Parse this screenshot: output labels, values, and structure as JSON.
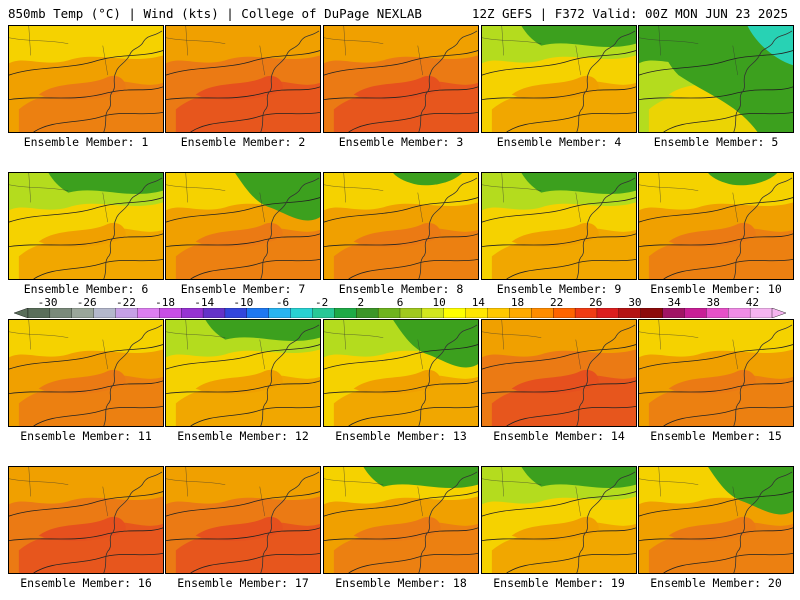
{
  "header": {
    "left": "850mb Temp (°C) | Wind (kts) | College of DuPage NEXLAB",
    "right": "12Z GEFS | F372 Valid: 00Z MON JUN 23 2025"
  },
  "panels": [
    {
      "label": "Ensemble Member: 1",
      "field": "warm",
      "green_area": "none"
    },
    {
      "label": "Ensemble Member: 2",
      "field": "hot",
      "green_area": "none"
    },
    {
      "label": "Ensemble Member: 3",
      "field": "hot",
      "green_area": "none"
    },
    {
      "label": "Ensemble Member: 4",
      "field": "mild",
      "green_area": "north"
    },
    {
      "label": "Ensemble Member: 5",
      "field": "cool",
      "green_area": "large-northeast"
    },
    {
      "label": "Ensemble Member: 6",
      "field": "mild",
      "green_area": "north"
    },
    {
      "label": "Ensemble Member: 7",
      "field": "warm",
      "green_area": "northeast"
    },
    {
      "label": "Ensemble Member: 8",
      "field": "warm",
      "green_area": "north-small"
    },
    {
      "label": "Ensemble Member: 9",
      "field": "mild",
      "green_area": "north"
    },
    {
      "label": "Ensemble Member: 10",
      "field": "warm",
      "green_area": "north-small"
    },
    {
      "label": "Ensemble Member: 11",
      "field": "warm",
      "green_area": "none"
    },
    {
      "label": "Ensemble Member: 12",
      "field": "mild",
      "green_area": "north"
    },
    {
      "label": "Ensemble Member: 13",
      "field": "mild",
      "green_area": "northeast"
    },
    {
      "label": "Ensemble Member: 14",
      "field": "hot",
      "green_area": "none"
    },
    {
      "label": "Ensemble Member: 15",
      "field": "warm",
      "green_area": "none"
    },
    {
      "label": "Ensemble Member: 16",
      "field": "hot",
      "green_area": "none"
    },
    {
      "label": "Ensemble Member: 17",
      "field": "hot",
      "green_area": "none"
    },
    {
      "label": "Ensemble Member: 18",
      "field": "warm",
      "green_area": "north"
    },
    {
      "label": "Ensemble Member: 19",
      "field": "mild",
      "green_area": "north"
    },
    {
      "label": "Ensemble Member: 20",
      "field": "warm",
      "green_area": "northeast"
    }
  ],
  "colorbar": {
    "labels": [
      "-30",
      "-26",
      "-22",
      "-18",
      "-14",
      "-10",
      "-6",
      "-2",
      "2",
      "6",
      "10",
      "14",
      "18",
      "22",
      "26",
      "30",
      "34",
      "38",
      "42"
    ],
    "colors": [
      "#5a6e5a",
      "#7a8a7a",
      "#9aa69a",
      "#b4b8cc",
      "#c6a0e6",
      "#dc7ef0",
      "#c84ee6",
      "#9632d2",
      "#6432c8",
      "#3246dc",
      "#1e78f0",
      "#28b4f0",
      "#28d2d2",
      "#28c896",
      "#1eaa46",
      "#3c9628",
      "#6eb41e",
      "#a0c81e",
      "#d2e61e",
      "#ffff00",
      "#ffe600",
      "#ffc800",
      "#ffaa00",
      "#ff8c00",
      "#ff6400",
      "#f03c14",
      "#dc1e1e",
      "#b41414",
      "#8c0a0a",
      "#a01464",
      "#c81e96",
      "#e650c8",
      "#f08ce6",
      "#f5b4f0"
    ]
  },
  "palette": {
    "green": "#3ca01e",
    "yellowgreen": "#b4dc1e",
    "yellow": "#f5d200",
    "orange": "#f0a000",
    "darkorange": "#eb7a14",
    "red": "#e6501e",
    "cyan": "#28d2b4"
  }
}
